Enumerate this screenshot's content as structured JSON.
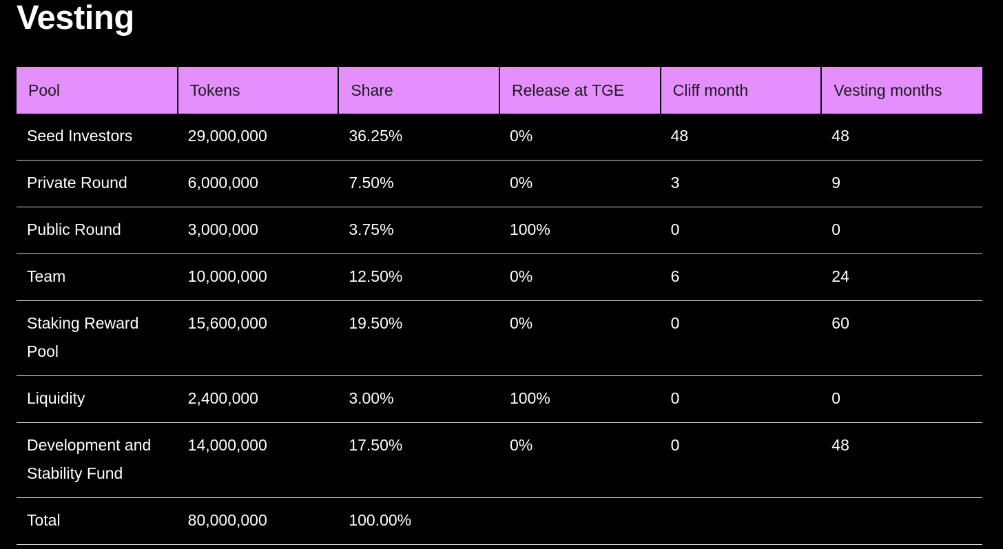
{
  "page": {
    "title": "Vesting"
  },
  "colors": {
    "background": "#000000",
    "header_background": "#e58fff",
    "header_text": "#1a1a1a",
    "body_text": "#ffffff",
    "row_divider": "#d9d9d9"
  },
  "table": {
    "columns": [
      "Pool",
      "Tokens",
      "Share",
      "Release at TGE",
      "Cliff month",
      "Vesting months"
    ],
    "rows": [
      [
        "Seed Investors",
        "29,000,000",
        "36.25%",
        "0%",
        "48",
        "48"
      ],
      [
        "Private Round",
        "6,000,000",
        "7.50%",
        "0%",
        "3",
        "9"
      ],
      [
        "Public Round",
        "3,000,000",
        "3.75%",
        "100%",
        "0",
        "0"
      ],
      [
        "Team",
        "10,000,000",
        "12.50%",
        "0%",
        "6",
        "24"
      ],
      [
        "Staking Reward Pool",
        "15,600,000",
        "19.50%",
        "0%",
        "0",
        "60"
      ],
      [
        "Liquidity",
        "2,400,000",
        "3.00%",
        "100%",
        "0",
        "0"
      ],
      [
        "Development and Stability Fund",
        "14,000,000",
        "17.50%",
        "0%",
        "0",
        "48"
      ],
      [
        "Total",
        "80,000,000",
        "100.00%",
        "",
        "",
        ""
      ]
    ]
  }
}
